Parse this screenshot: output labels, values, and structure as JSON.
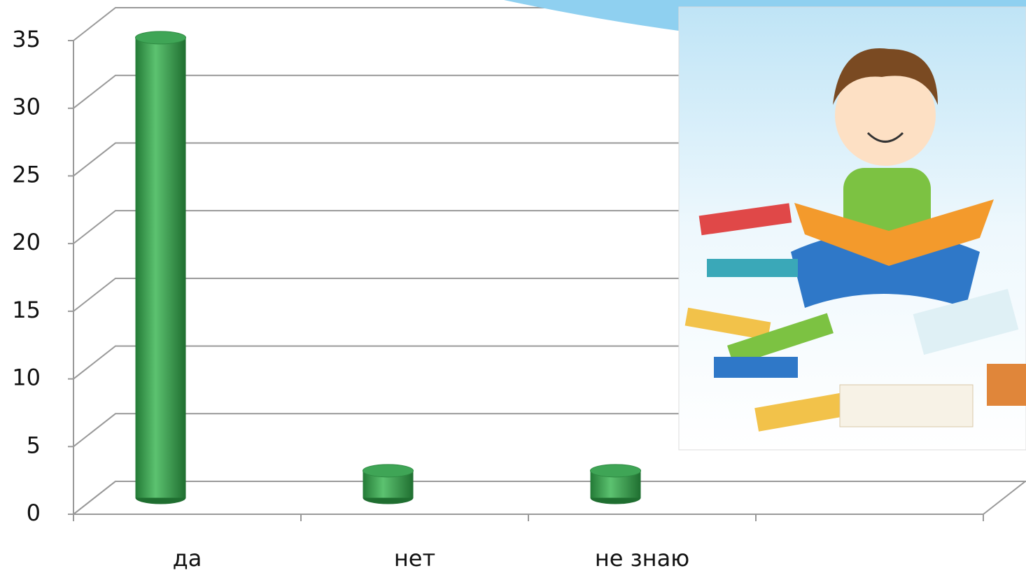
{
  "chart_data": {
    "type": "bar",
    "categories": [
      "да",
      "нет",
      "не знаю",
      null
    ],
    "values": [
      34,
      2,
      2,
      null
    ],
    "color": "#3fa556",
    "ylim": [
      0,
      35
    ],
    "yticks": [
      0,
      5,
      10,
      15,
      20,
      25,
      30,
      35
    ],
    "grid": true
  }
}
